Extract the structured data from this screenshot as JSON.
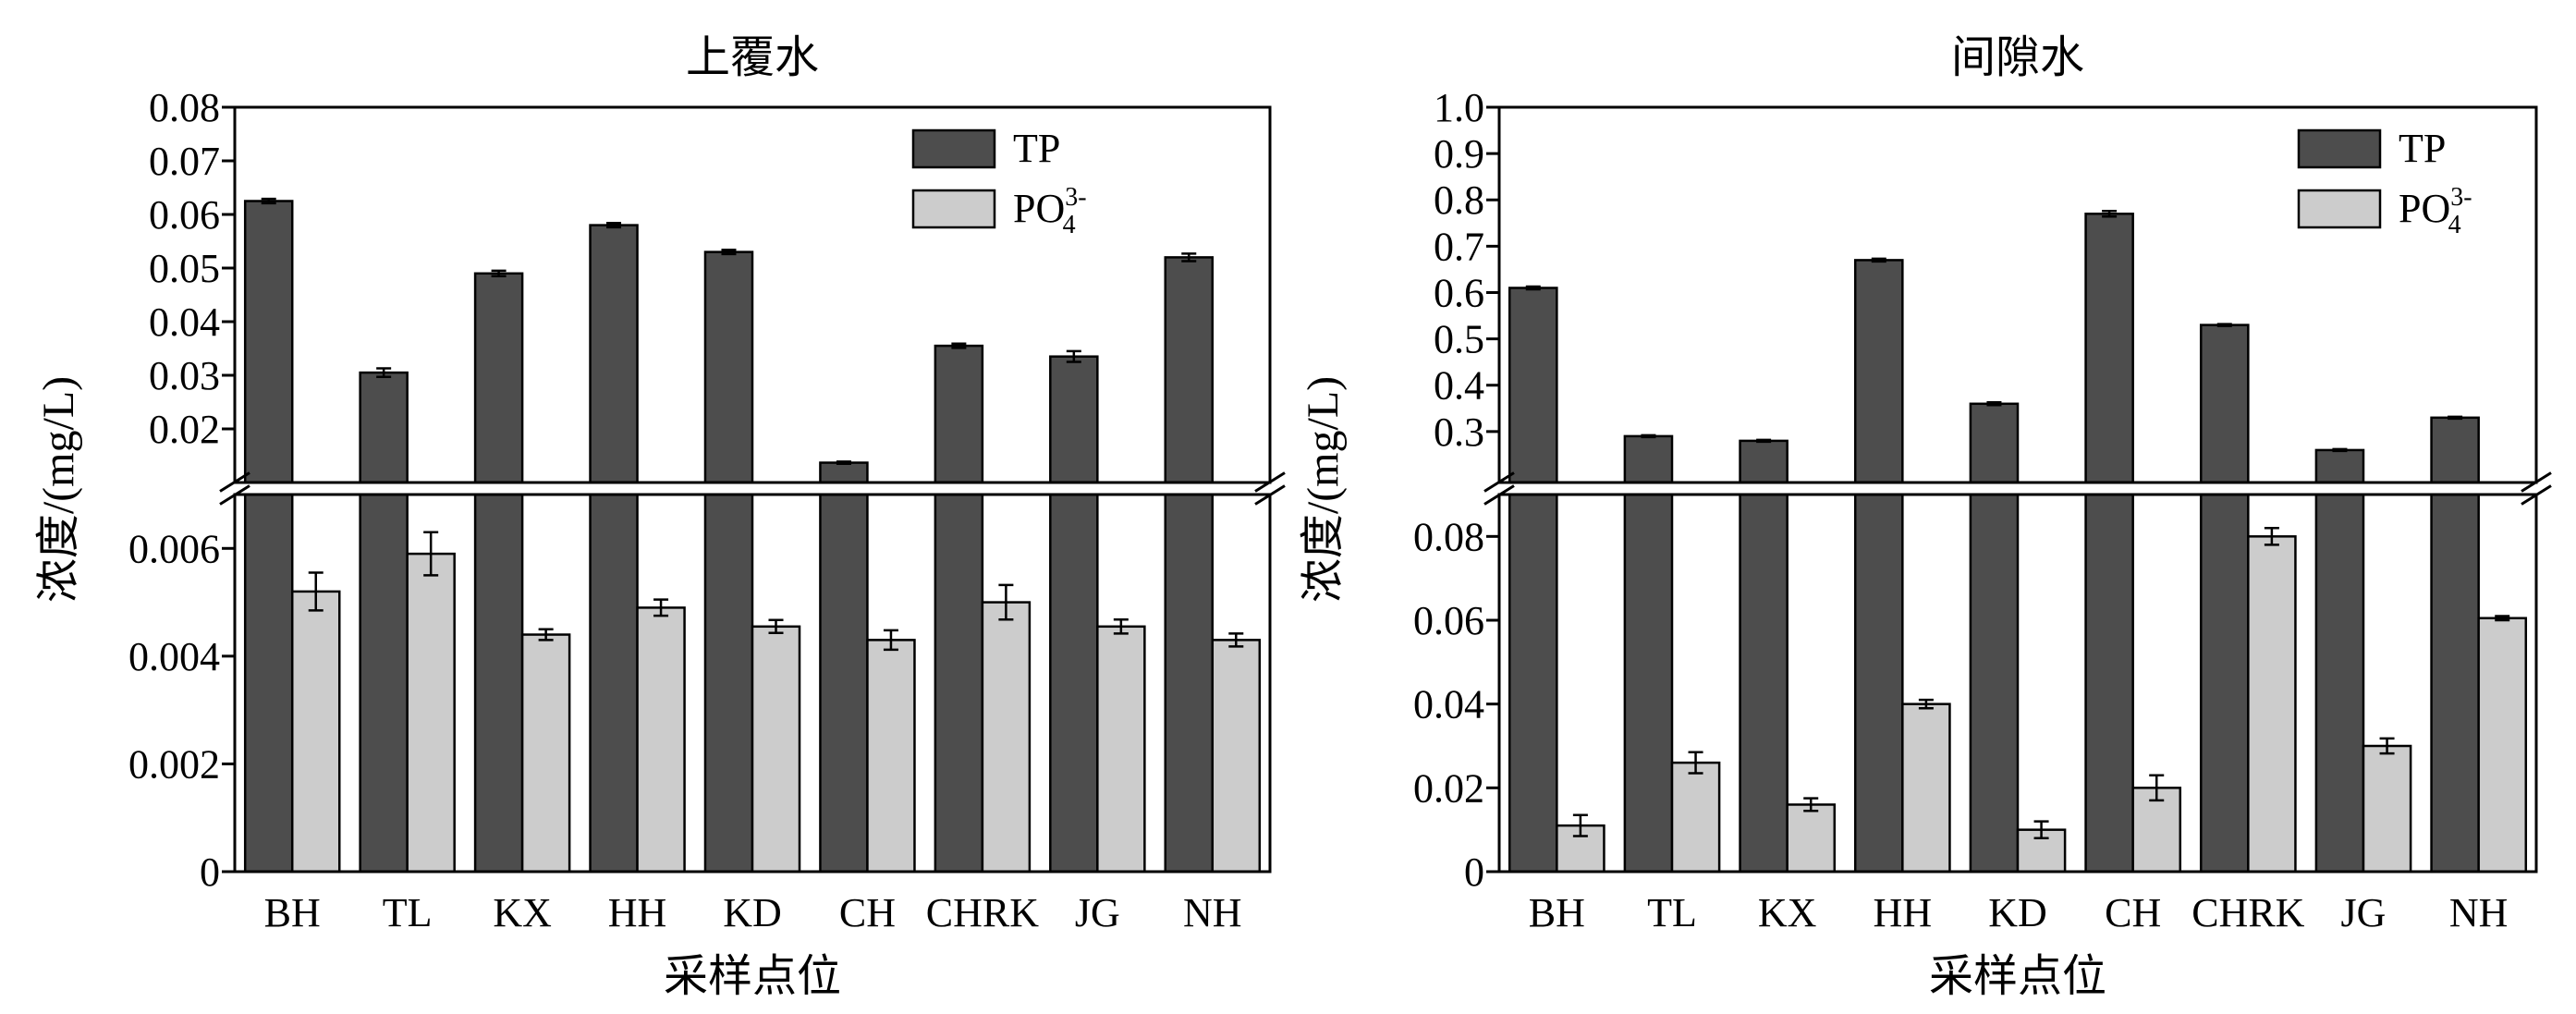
{
  "colors": {
    "tp": "#4d4d4d",
    "po4": "#cccccc",
    "axis": "#000000"
  },
  "chart_data": [
    {
      "type": "bar",
      "title": "上覆水",
      "xlabel": "采样点位",
      "ylabel": "浓度/(mg/L)",
      "categories": [
        "BH",
        "TL",
        "KX",
        "HH",
        "KD",
        "CH",
        "CHRK",
        "JG",
        "NH"
      ],
      "series": [
        {
          "name": "TP",
          "color_key": "tp",
          "values": [
            0.0625,
            0.0305,
            0.049,
            0.058,
            0.053,
            0.0137,
            0.0355,
            0.0335,
            0.052
          ],
          "errors": [
            0.0004,
            0.0008,
            0.0005,
            0.0004,
            0.0004,
            0.0002,
            0.0004,
            0.001,
            0.0007
          ]
        },
        {
          "name": "PO43-",
          "label_main": "PO",
          "label_sub": "4",
          "label_sup": "3-",
          "color_key": "po4",
          "values": [
            0.0052,
            0.0059,
            0.0044,
            0.0049,
            0.00455,
            0.0043,
            0.005,
            0.00455,
            0.0043
          ],
          "errors": [
            0.00035,
            0.0004,
            0.0001,
            0.00015,
            0.00012,
            0.00018,
            0.00032,
            0.00013,
            0.00012
          ]
        }
      ],
      "y_axis_break": {
        "lower": {
          "range": [
            0,
            0.007
          ],
          "ticks": [
            0,
            0.002,
            0.004,
            0.006
          ],
          "tick_labels": [
            "0",
            "0.002",
            "0.004",
            "0.006"
          ]
        },
        "upper": {
          "range": [
            0.01,
            0.08
          ],
          "ticks": [
            0.02,
            0.03,
            0.04,
            0.05,
            0.06,
            0.07,
            0.08
          ],
          "tick_labels": [
            "0.02",
            "0.03",
            "0.04",
            "0.05",
            "0.06",
            "0.07",
            "0.08"
          ]
        }
      },
      "legend_position": "top-right",
      "grid": false
    },
    {
      "type": "bar",
      "title": "间隙水",
      "xlabel": "采样点位",
      "ylabel": "浓度/(mg/L)",
      "categories": [
        "BH",
        "TL",
        "KX",
        "HH",
        "KD",
        "CH",
        "CHRK",
        "JG",
        "NH"
      ],
      "series": [
        {
          "name": "TP",
          "color_key": "tp",
          "values": [
            0.61,
            0.29,
            0.28,
            0.67,
            0.36,
            0.77,
            0.53,
            0.26,
            0.33
          ],
          "errors": [
            0.003,
            0.002,
            0.002,
            0.003,
            0.003,
            0.006,
            0.002,
            0.002,
            0.002
          ]
        },
        {
          "name": "PO43-",
          "label_main": "PO",
          "label_sub": "4",
          "label_sup": "3-",
          "color_key": "po4",
          "values": [
            0.011,
            0.026,
            0.016,
            0.04,
            0.01,
            0.02,
            0.08,
            0.03,
            0.0605
          ],
          "errors": [
            0.0025,
            0.0025,
            0.0015,
            0.001,
            0.002,
            0.003,
            0.002,
            0.0018,
            0.0005
          ]
        }
      ],
      "y_axis_break": {
        "lower": {
          "range": [
            0,
            0.09
          ],
          "ticks": [
            0,
            0.02,
            0.04,
            0.06,
            0.08
          ],
          "tick_labels": [
            "0",
            "0.02",
            "0.04",
            "0.06",
            "0.08"
          ]
        },
        "upper": {
          "range": [
            0.19,
            1.0
          ],
          "ticks": [
            0.3,
            0.4,
            0.5,
            0.6,
            0.7,
            0.8,
            0.9,
            1.0
          ],
          "tick_labels": [
            "0.3",
            "0.4",
            "0.5",
            "0.6",
            "0.7",
            "0.8",
            "0.9",
            "1.0"
          ]
        }
      },
      "legend_position": "top-right",
      "grid": false
    }
  ]
}
